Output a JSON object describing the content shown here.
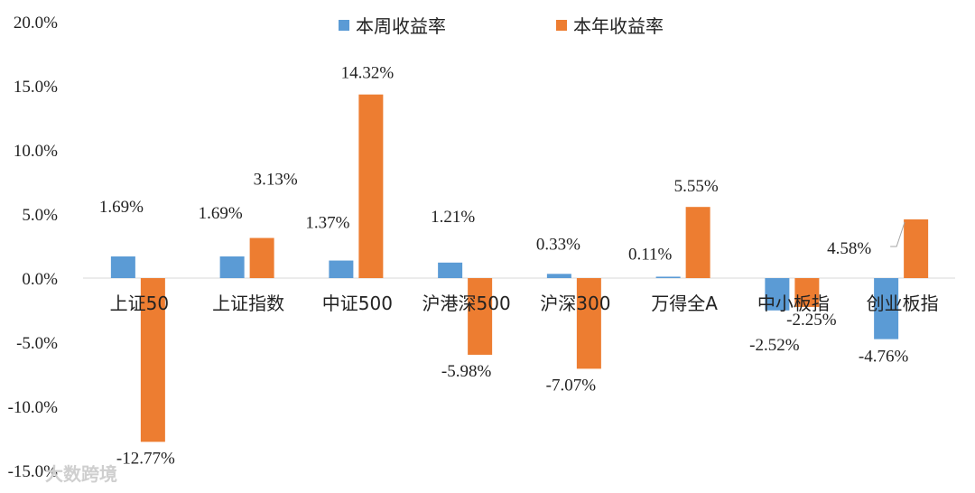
{
  "chart_data": {
    "type": "bar",
    "categories": [
      "上证50",
      "上证指数",
      "中证500",
      "沪港深500",
      "沪深300",
      "万得全A",
      "中小板指",
      "创业板指"
    ],
    "series": [
      {
        "name": "本周收益率",
        "values": [
          1.69,
          1.69,
          1.37,
          1.21,
          0.33,
          0.11,
          -2.52,
          -4.76
        ],
        "labels": [
          "1.69%",
          "1.69%",
          "1.37%",
          "1.21%",
          "0.33%",
          "0.11%",
          "-2.52%",
          "-4.76%"
        ]
      },
      {
        "name": "本年收益率",
        "values": [
          -12.77,
          3.13,
          14.32,
          -5.98,
          -7.07,
          5.55,
          -2.25,
          4.58
        ],
        "labels": [
          "-12.77%",
          "3.13%",
          "14.32%",
          "-5.98%",
          "-7.07%",
          "5.55%",
          "-2.25%",
          "4.58%"
        ]
      }
    ],
    "yticks": [
      "20.0%",
      "15.0%",
      "10.0%",
      "5.0%",
      "0.0%",
      "-5.0%",
      "-10.0%",
      "-15.0%"
    ],
    "ylim": [
      -15,
      20
    ],
    "grid": false,
    "legend_position": "top",
    "colors": [
      "#5B9BD5",
      "#ED7D31"
    ]
  },
  "watermark": "大数跨境"
}
